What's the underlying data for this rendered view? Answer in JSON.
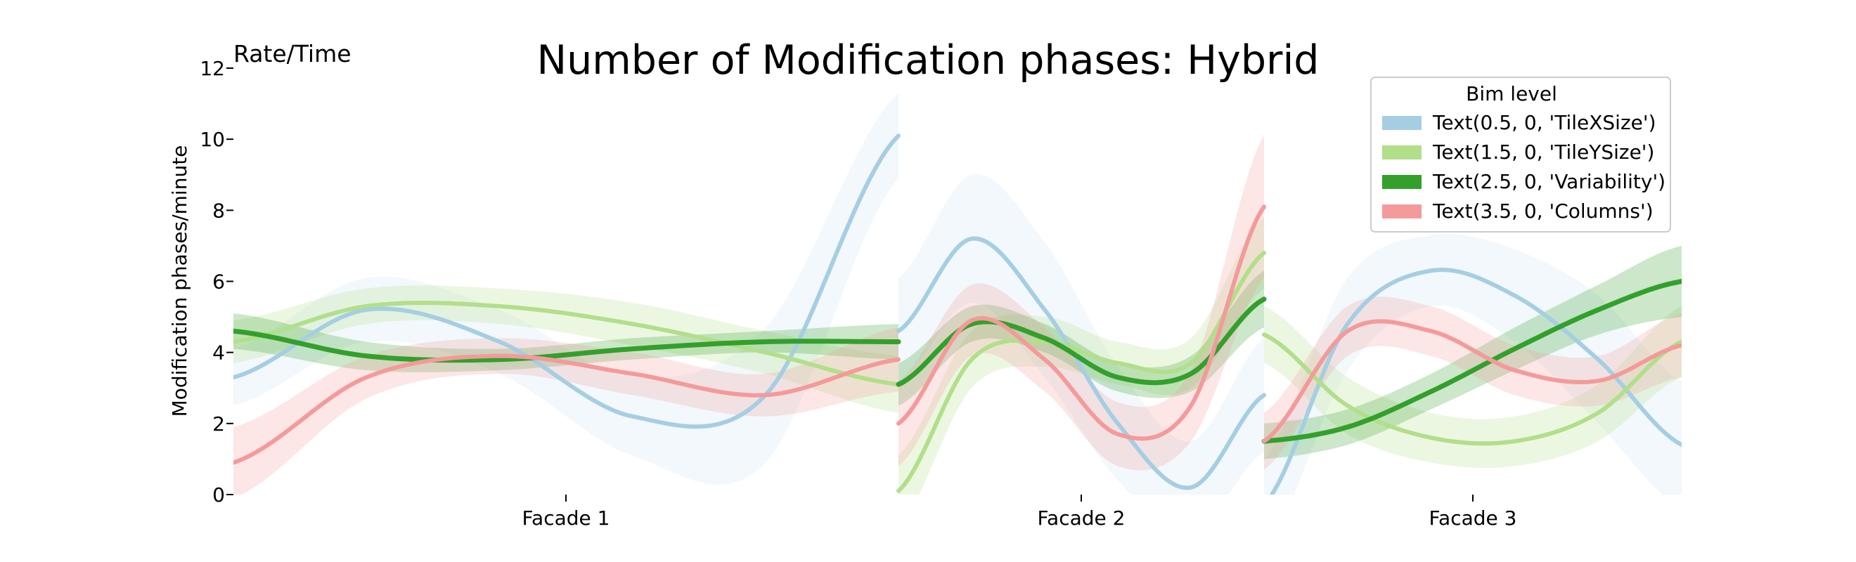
{
  "chart_data": {
    "type": "line",
    "title": "Number of Modification phases: Hybrid",
    "corner_label": "Rate/Time",
    "ylabel": "Modification phases/minute",
    "xlabel": "",
    "ylim": [
      0,
      12
    ],
    "yticks": [
      0,
      2,
      4,
      6,
      8,
      10,
      12
    ],
    "categories": [
      "Facade 1",
      "Facade 2",
      "Facade 3"
    ],
    "legend": {
      "title": "Bim level",
      "placement": "top-right"
    },
    "series": [
      {
        "name": "Text(0.5, 0, 'TileXSize')",
        "color": "#a6cee3",
        "segments": [
          {
            "facade": "Facade 1",
            "t": [
              0,
              0.2,
              0.4,
              0.6,
              0.8,
              1.0
            ],
            "y": [
              3.3,
              5.2,
              4.3,
              2.2,
              2.8,
              10.1
            ],
            "band": [
              0.8,
              0.9,
              0.9,
              1.1,
              1.9,
              1.2
            ]
          },
          {
            "facade": "Facade 2",
            "t": [
              0,
              0.2,
              0.4,
              0.6,
              0.8,
              1.0
            ],
            "y": [
              4.6,
              7.2,
              5.2,
              2.0,
              0.2,
              2.8
            ],
            "band": [
              1.5,
              1.8,
              1.9,
              1.6,
              1.3,
              1.6
            ]
          },
          {
            "facade": "Facade 3",
            "t": [
              0,
              0.2,
              0.4,
              0.6,
              0.8,
              1.0
            ],
            "y": [
              -0.3,
              4.8,
              6.3,
              5.6,
              3.8,
              1.4
            ],
            "band": [
              1.3,
              1.3,
              1.0,
              1.3,
              1.8,
              1.8
            ]
          }
        ]
      },
      {
        "name": "Text(1.5, 0, 'TileYSize')",
        "color": "#b2df8a",
        "segments": [
          {
            "facade": "Facade 1",
            "t": [
              0,
              0.2,
              0.4,
              0.6,
              0.8,
              1.0
            ],
            "y": [
              4.3,
              5.3,
              5.3,
              4.8,
              4.0,
              3.1
            ],
            "band": [
              0.6,
              0.5,
              0.5,
              0.6,
              0.6,
              0.8
            ]
          },
          {
            "facade": "Facade 2",
            "t": [
              0,
              0.2,
              0.4,
              0.6,
              0.8,
              1.0
            ],
            "y": [
              0.1,
              3.8,
              4.3,
              3.7,
              3.7,
              6.8
            ],
            "band": [
              1.0,
              0.8,
              0.7,
              0.6,
              0.7,
              1.0
            ]
          },
          {
            "facade": "Facade 3",
            "t": [
              0,
              0.2,
              0.4,
              0.6,
              0.8,
              1.0
            ],
            "y": [
              4.5,
              2.5,
              1.6,
              1.5,
              2.3,
              4.3
            ],
            "band": [
              0.8,
              0.8,
              0.7,
              0.7,
              0.8,
              1.0
            ]
          }
        ]
      },
      {
        "name": "Text(2.5, 0, 'Variability')",
        "color": "#33a02c",
        "segments": [
          {
            "facade": "Facade 1",
            "t": [
              0,
              0.2,
              0.4,
              0.6,
              0.8,
              1.0
            ],
            "y": [
              4.6,
              3.9,
              3.8,
              4.1,
              4.3,
              4.3
            ],
            "band": [
              0.5,
              0.4,
              0.3,
              0.3,
              0.3,
              0.5
            ]
          },
          {
            "facade": "Facade 2",
            "t": [
              0,
              0.2,
              0.4,
              0.6,
              0.8,
              1.0
            ],
            "y": [
              3.1,
              4.8,
              4.4,
              3.3,
              3.4,
              5.5
            ],
            "band": [
              0.6,
              0.5,
              0.4,
              0.4,
              0.5,
              0.8
            ]
          },
          {
            "facade": "Facade 3",
            "t": [
              0,
              0.2,
              0.4,
              0.6,
              0.8,
              1.0
            ],
            "y": [
              1.5,
              1.9,
              2.9,
              4.1,
              5.2,
              6.0
            ],
            "band": [
              0.5,
              0.5,
              0.5,
              0.6,
              0.7,
              1.0
            ]
          }
        ]
      },
      {
        "name": "Text(3.5, 0, 'Columns')",
        "color": "#f49a9a",
        "segments": [
          {
            "facade": "Facade 1",
            "t": [
              0,
              0.2,
              0.4,
              0.6,
              0.8,
              1.0
            ],
            "y": [
              0.9,
              3.3,
              3.9,
              3.4,
              2.8,
              3.8
            ],
            "band": [
              1.0,
              0.6,
              0.5,
              0.6,
              0.6,
              0.9
            ]
          },
          {
            "facade": "Facade 2",
            "t": [
              0,
              0.2,
              0.4,
              0.6,
              0.8,
              1.0
            ],
            "y": [
              2.0,
              4.9,
              3.8,
              1.7,
              2.5,
              8.1
            ],
            "band": [
              1.2,
              1.0,
              0.9,
              0.9,
              1.0,
              2.0
            ]
          },
          {
            "facade": "Facade 3",
            "t": [
              0,
              0.2,
              0.4,
              0.6,
              0.8,
              1.0
            ],
            "y": [
              1.5,
              4.6,
              4.6,
              3.5,
              3.2,
              4.2
            ],
            "band": [
              0.8,
              0.7,
              0.7,
              0.7,
              0.7,
              0.9
            ]
          }
        ]
      }
    ]
  }
}
